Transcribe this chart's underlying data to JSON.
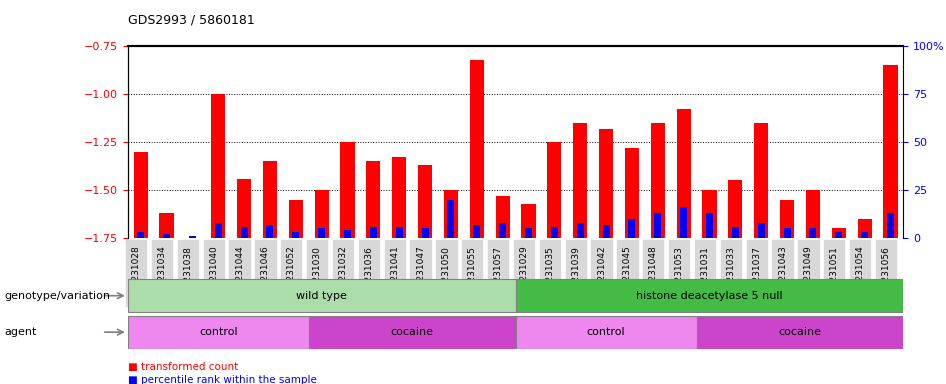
{
  "title": "GDS2993 / 5860181",
  "samples": [
    "GSM231028",
    "GSM231034",
    "GSM231038",
    "GSM231040",
    "GSM231044",
    "GSM231046",
    "GSM231052",
    "GSM231030",
    "GSM231032",
    "GSM231036",
    "GSM231041",
    "GSM231047",
    "GSM231050",
    "GSM231055",
    "GSM231057",
    "GSM231029",
    "GSM231035",
    "GSM231039",
    "GSM231042",
    "GSM231045",
    "GSM231048",
    "GSM231053",
    "GSM231031",
    "GSM231033",
    "GSM231037",
    "GSM231043",
    "GSM231049",
    "GSM231051",
    "GSM231054",
    "GSM231056"
  ],
  "red_values": [
    -1.3,
    -1.62,
    -1.75,
    -1.0,
    -1.44,
    -1.35,
    -1.55,
    -1.5,
    -1.25,
    -1.35,
    -1.33,
    -1.37,
    -1.5,
    -0.82,
    -1.53,
    -1.57,
    -1.25,
    -1.15,
    -1.18,
    -1.28,
    -1.15,
    -1.08,
    -1.5,
    -1.45,
    -1.15,
    -1.55,
    -1.5,
    -1.7,
    -1.65,
    -0.85
  ],
  "blue_values": [
    3,
    2,
    1,
    8,
    6,
    7,
    3,
    5,
    4,
    6,
    6,
    5,
    20,
    7,
    8,
    5,
    6,
    8,
    7,
    10,
    13,
    16,
    13,
    6,
    8,
    5,
    5,
    3,
    3,
    13
  ],
  "ylim_left": [
    -1.75,
    -0.75
  ],
  "ylim_right": [
    0,
    100
  ],
  "yticks_left": [
    -1.75,
    -1.5,
    -1.25,
    -1.0,
    -0.75
  ],
  "yticks_right": [
    0,
    25,
    50,
    75,
    100
  ],
  "groups_genotype": [
    {
      "label": "wild type",
      "start": 0,
      "end": 14,
      "color": "#aaddaa"
    },
    {
      "label": "histone deacetylase 5 null",
      "start": 15,
      "end": 29,
      "color": "#44bb44"
    }
  ],
  "groups_agent": [
    {
      "label": "control",
      "start": 0,
      "end": 6,
      "color": "#ee88ee"
    },
    {
      "label": "cocaine",
      "start": 7,
      "end": 14,
      "color": "#cc44cc"
    },
    {
      "label": "control",
      "start": 15,
      "end": 21,
      "color": "#ee88ee"
    },
    {
      "label": "cocaine",
      "start": 22,
      "end": 29,
      "color": "#cc44cc"
    }
  ],
  "bar_width": 0.55,
  "bg_color": "#ffffff",
  "tick_bg_color": "#d8d8d8"
}
